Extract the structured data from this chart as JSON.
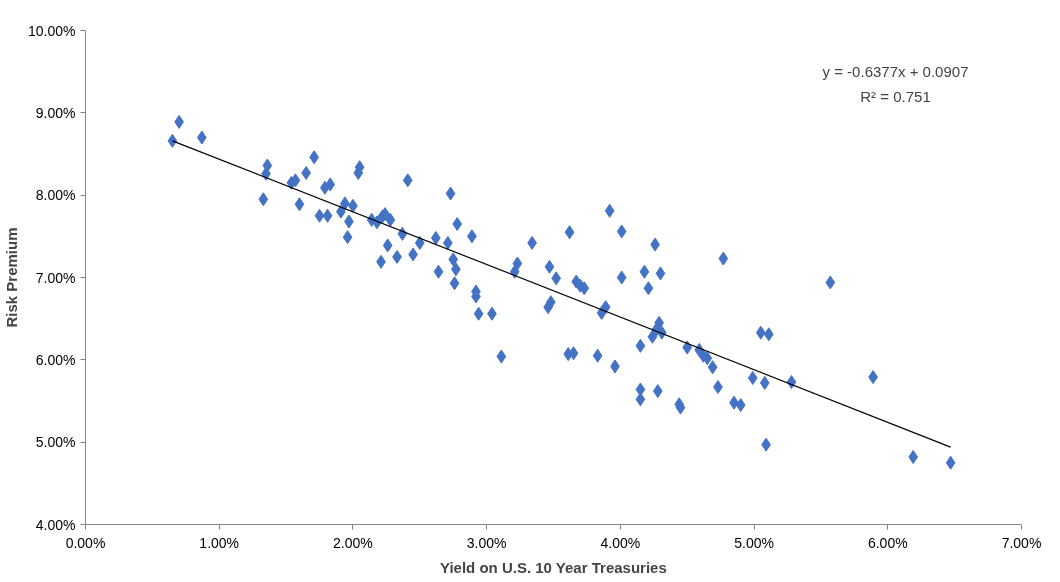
{
  "chart_data": {
    "type": "scatter",
    "xlabel": "Yield on U.S. 10 Year Treasuries",
    "ylabel": "Risk Premium",
    "grid": false,
    "xlim": [
      0,
      7
    ],
    "ylim": [
      4,
      10
    ],
    "xticks": [
      {
        "value": 0,
        "label": "0.00%"
      },
      {
        "value": 1,
        "label": "1.00%"
      },
      {
        "value": 2,
        "label": "2.00%"
      },
      {
        "value": 3,
        "label": "3.00%"
      },
      {
        "value": 4,
        "label": "4.00%"
      },
      {
        "value": 5,
        "label": "5.00%"
      },
      {
        "value": 6,
        "label": "6.00%"
      },
      {
        "value": 7,
        "label": "7.00%"
      }
    ],
    "yticks": [
      {
        "value": 4,
        "label": "4.00%"
      },
      {
        "value": 5,
        "label": "5.00%"
      },
      {
        "value": 6,
        "label": "6.00%"
      },
      {
        "value": 7,
        "label": "7.00%"
      },
      {
        "value": 8,
        "label": "8.00%"
      },
      {
        "value": 9,
        "label": "9.00%"
      },
      {
        "value": 10,
        "label": "10.00%"
      }
    ],
    "annotations": [
      "y = -0.6377x + 0.0907",
      "R² = 0.751"
    ],
    "series": [
      {
        "marker": "diamond",
        "color": "#4472c4",
        "x": [
          0.65,
          0.7,
          0.87,
          1.33,
          1.35,
          1.36,
          1.54,
          1.57,
          1.6,
          1.65,
          1.71,
          1.75,
          1.79,
          1.81,
          1.83,
          1.91,
          1.94,
          1.96,
          1.97,
          2.0,
          2.04,
          2.05,
          2.14,
          2.18,
          2.21,
          2.22,
          2.24,
          2.26,
          2.28,
          2.33,
          2.37,
          2.41,
          2.45,
          2.5,
          2.62,
          2.64,
          2.71,
          2.73,
          2.75,
          2.76,
          2.77,
          2.78,
          2.89,
          2.92,
          2.92,
          2.94,
          3.04,
          3.11,
          3.21,
          3.23,
          3.34,
          3.46,
          3.47,
          3.48,
          3.52,
          3.61,
          3.62,
          3.65,
          3.67,
          3.7,
          3.73,
          3.83,
          3.86,
          3.89,
          3.92,
          3.96,
          4.01,
          4.01,
          4.15,
          4.15,
          4.15,
          4.18,
          4.21,
          4.24,
          4.26,
          4.27,
          4.28,
          4.29,
          4.3,
          4.31,
          4.44,
          4.45,
          4.5,
          4.59,
          4.62,
          4.65,
          4.69,
          4.73,
          4.77,
          4.85,
          4.9,
          4.99,
          5.05,
          5.08,
          5.09,
          5.11,
          5.28,
          5.57,
          5.89,
          6.19,
          6.47
        ],
        "values": [
          8.66,
          8.89,
          8.7,
          7.95,
          8.26,
          8.36,
          8.15,
          8.18,
          7.89,
          8.27,
          8.46,
          7.75,
          8.09,
          7.75,
          8.13,
          7.8,
          7.9,
          7.49,
          7.68,
          7.87,
          8.27,
          8.34,
          7.7,
          7.67,
          7.19,
          7.74,
          7.77,
          7.39,
          7.7,
          7.25,
          7.53,
          8.18,
          7.28,
          7.42,
          7.48,
          7.07,
          7.42,
          8.02,
          7.22,
          6.93,
          7.1,
          7.65,
          7.5,
          6.83,
          6.77,
          6.56,
          6.56,
          6.04,
          7.07,
          7.17,
          7.42,
          6.64,
          7.13,
          6.7,
          6.99,
          6.07,
          7.55,
          6.08,
          6.95,
          6.9,
          6.87,
          6.05,
          6.57,
          6.64,
          7.81,
          5.92,
          7.56,
          7.0,
          6.17,
          5.64,
          5.52,
          7.07,
          6.87,
          6.28,
          7.4,
          6.37,
          5.62,
          6.45,
          7.05,
          6.33,
          5.46,
          5.42,
          6.15,
          6.12,
          6.05,
          6.02,
          5.91,
          5.67,
          7.23,
          5.48,
          5.45,
          5.78,
          6.33,
          5.72,
          4.97,
          6.31,
          5.73,
          6.94,
          5.79,
          4.82,
          4.75
        ]
      },
      {
        "type": "line",
        "marker": "none",
        "color": "#000000",
        "x": [
          0.65,
          6.47
        ],
        "values": [
          8.66,
          4.94
        ]
      }
    ]
  }
}
